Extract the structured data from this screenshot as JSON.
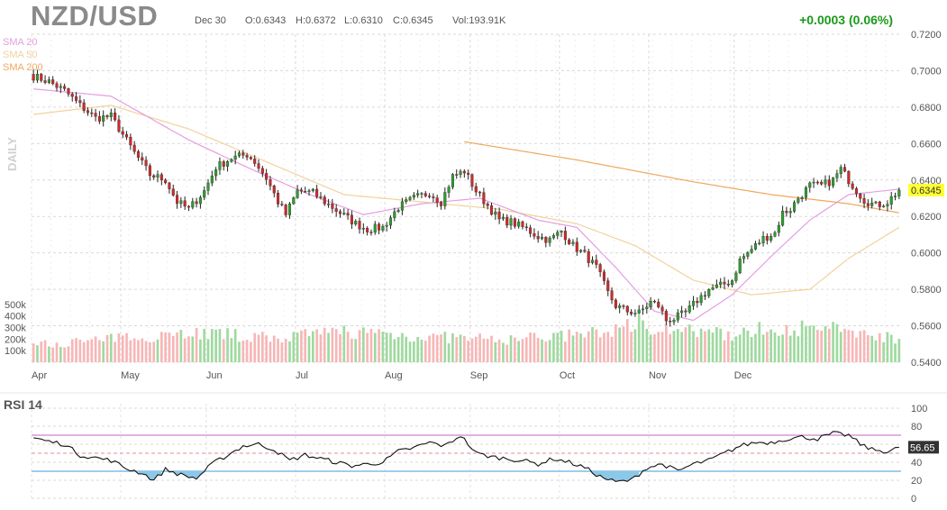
{
  "header": {
    "symbol": "NZD/USD",
    "date": "Dec 30",
    "open": "O:0.6343",
    "high": "H:0.6372",
    "low": "L:0.6310",
    "close": "C:0.6345",
    "volume": "Vol:193.91K",
    "change": "+0.0003 (0.06%)"
  },
  "indicators": {
    "sma20": "SMA 20",
    "sma50": "SMA 50",
    "sma200": "SMA 200",
    "timeframe": "DAILY",
    "rsi": "RSI 14",
    "rsi_value": "56.65",
    "last_price": "0.6345"
  },
  "colors": {
    "up": "#2ca02c",
    "down": "#d62728",
    "vol_up": "#9fd99f",
    "vol_down": "#f7b6b6",
    "sma20": "#e59ee0",
    "sma50": "#f2d29c",
    "sma200": "#f0a860",
    "rsi_line": "#111111",
    "rsi_upper": "#d080d0",
    "rsi_lower": "#6aaedc",
    "last_price_bg": "#ffff33",
    "change": "#1a9a1a"
  },
  "chart_data": [
    {
      "type": "candlestick",
      "title": "NZD/USD",
      "x_months": [
        "Apr",
        "May",
        "Jun",
        "Jul",
        "Aug",
        "Sep",
        "Oct",
        "Nov",
        "Dec"
      ],
      "y_ticks": [
        "0.7200",
        "0.7000",
        "0.6800",
        "0.6600",
        "0.6400",
        "0.6200",
        "0.6000",
        "0.5800",
        "0.5600",
        "0.5400"
      ],
      "ylim": [
        0.54,
        0.72
      ],
      "close_anchors": [
        [
          0,
          0.697
        ],
        [
          4,
          0.694
        ],
        [
          8,
          0.689
        ],
        [
          12,
          0.681
        ],
        [
          16,
          0.674
        ],
        [
          20,
          0.675
        ],
        [
          23,
          0.665
        ],
        [
          26,
          0.655
        ],
        [
          30,
          0.643
        ],
        [
          34,
          0.64
        ],
        [
          37,
          0.628
        ],
        [
          40,
          0.624
        ],
        [
          44,
          0.634
        ],
        [
          47,
          0.647
        ],
        [
          51,
          0.652
        ],
        [
          55,
          0.654
        ],
        [
          57,
          0.65
        ],
        [
          60,
          0.641
        ],
        [
          63,
          0.628
        ],
        [
          65,
          0.621
        ],
        [
          68,
          0.634
        ],
        [
          72,
          0.633
        ],
        [
          75,
          0.628
        ],
        [
          79,
          0.622
        ],
        [
          83,
          0.616
        ],
        [
          86,
          0.613
        ],
        [
          90,
          0.614
        ],
        [
          94,
          0.625
        ],
        [
          98,
          0.63
        ],
        [
          102,
          0.633
        ],
        [
          105,
          0.628
        ],
        [
          108,
          0.642
        ],
        [
          111,
          0.645
        ],
        [
          114,
          0.634
        ],
        [
          117,
          0.626
        ],
        [
          120,
          0.618
        ],
        [
          123,
          0.617
        ],
        [
          127,
          0.613
        ],
        [
          130,
          0.609
        ],
        [
          133,
          0.607
        ],
        [
          136,
          0.612
        ],
        [
          139,
          0.604
        ],
        [
          142,
          0.599
        ],
        [
          145,
          0.592
        ],
        [
          148,
          0.578
        ],
        [
          150,
          0.571
        ],
        [
          153,
          0.568
        ],
        [
          156,
          0.567
        ],
        [
          159,
          0.573
        ],
        [
          161,
          0.571
        ],
        [
          163,
          0.563
        ],
        [
          165,
          0.564
        ],
        [
          168,
          0.567
        ],
        [
          171,
          0.574
        ],
        [
          174,
          0.58
        ],
        [
          177,
          0.582
        ],
        [
          180,
          0.585
        ],
        [
          182,
          0.596
        ],
        [
          185,
          0.602
        ],
        [
          188,
          0.608
        ],
        [
          191,
          0.611
        ],
        [
          193,
          0.622
        ],
        [
          195,
          0.624
        ],
        [
          197,
          0.63
        ],
        [
          200,
          0.637
        ],
        [
          203,
          0.637
        ],
        [
          206,
          0.64
        ],
        [
          208,
          0.646
        ],
        [
          211,
          0.637
        ],
        [
          214,
          0.629
        ],
        [
          217,
          0.626
        ],
        [
          220,
          0.628
        ],
        [
          223,
          0.6345
        ]
      ],
      "volume_ticks": [
        "500k",
        "400k",
        "300k",
        "200k",
        "100k"
      ],
      "volume_ylim": [
        0,
        530000
      ],
      "volume_anchors": [
        [
          0,
          150000
        ],
        [
          20,
          200000
        ],
        [
          40,
          260000
        ],
        [
          50,
          240000
        ],
        [
          60,
          210000
        ],
        [
          70,
          230000
        ],
        [
          80,
          270000
        ],
        [
          90,
          250000
        ],
        [
          100,
          220000
        ],
        [
          110,
          210000
        ],
        [
          120,
          190000
        ],
        [
          130,
          220000
        ],
        [
          140,
          230000
        ],
        [
          150,
          280000
        ],
        [
          155,
          350000
        ],
        [
          160,
          310000
        ],
        [
          170,
          260000
        ],
        [
          180,
          240000
        ],
        [
          190,
          300000
        ],
        [
          200,
          290000
        ],
        [
          210,
          280000
        ],
        [
          223,
          200000
        ]
      ],
      "sma20_points": [
        [
          0,
          0.69
        ],
        [
          20,
          0.686
        ],
        [
          40,
          0.662
        ],
        [
          55,
          0.647
        ],
        [
          70,
          0.633
        ],
        [
          85,
          0.621
        ],
        [
          100,
          0.627
        ],
        [
          115,
          0.63
        ],
        [
          130,
          0.618
        ],
        [
          140,
          0.614
        ],
        [
          150,
          0.592
        ],
        [
          160,
          0.568
        ],
        [
          170,
          0.563
        ],
        [
          180,
          0.577
        ],
        [
          190,
          0.598
        ],
        [
          200,
          0.618
        ],
        [
          210,
          0.632
        ],
        [
          223,
          0.635
        ]
      ],
      "sma50_points": [
        [
          0,
          0.676
        ],
        [
          20,
          0.681
        ],
        [
          40,
          0.668
        ],
        [
          60,
          0.65
        ],
        [
          80,
          0.632
        ],
        [
          100,
          0.628
        ],
        [
          120,
          0.624
        ],
        [
          140,
          0.616
        ],
        [
          155,
          0.604
        ],
        [
          170,
          0.585
        ],
        [
          185,
          0.577
        ],
        [
          200,
          0.58
        ],
        [
          210,
          0.597
        ],
        [
          223,
          0.614
        ]
      ],
      "sma200_points": [
        [
          111,
          0.661
        ],
        [
          140,
          0.651
        ],
        [
          170,
          0.639
        ],
        [
          190,
          0.632
        ],
        [
          210,
          0.627
        ],
        [
          223,
          0.622
        ]
      ]
    },
    {
      "type": "line",
      "title": "RSI 14",
      "ylim": [
        0,
        100
      ],
      "y_ticks": [
        "100",
        "80",
        "60",
        "40",
        "20",
        "0"
      ],
      "levels": [
        70,
        30
      ],
      "rsi_anchors": [
        [
          0,
          67
        ],
        [
          4,
          63
        ],
        [
          8,
          60
        ],
        [
          12,
          48
        ],
        [
          16,
          45
        ],
        [
          20,
          42
        ],
        [
          24,
          33
        ],
        [
          28,
          28
        ],
        [
          31,
          20
        ],
        [
          34,
          32
        ],
        [
          38,
          26
        ],
        [
          42,
          22
        ],
        [
          46,
          38
        ],
        [
          50,
          48
        ],
        [
          54,
          58
        ],
        [
          58,
          60
        ],
        [
          62,
          54
        ],
        [
          66,
          42
        ],
        [
          70,
          48
        ],
        [
          74,
          44
        ],
        [
          78,
          40
        ],
        [
          82,
          36
        ],
        [
          86,
          38
        ],
        [
          90,
          40
        ],
        [
          94,
          52
        ],
        [
          98,
          56
        ],
        [
          102,
          62
        ],
        [
          106,
          58
        ],
        [
          110,
          70
        ],
        [
          114,
          50
        ],
        [
          118,
          46
        ],
        [
          122,
          44
        ],
        [
          126,
          42
        ],
        [
          130,
          38
        ],
        [
          134,
          44
        ],
        [
          138,
          40
        ],
        [
          142,
          34
        ],
        [
          146,
          24
        ],
        [
          150,
          18
        ],
        [
          154,
          20
        ],
        [
          158,
          34
        ],
        [
          162,
          38
        ],
        [
          166,
          30
        ],
        [
          170,
          38
        ],
        [
          174,
          42
        ],
        [
          178,
          50
        ],
        [
          182,
          58
        ],
        [
          186,
          62
        ],
        [
          190,
          62
        ],
        [
          194,
          66
        ],
        [
          198,
          68
        ],
        [
          202,
          66
        ],
        [
          206,
          72
        ],
        [
          210,
          70
        ],
        [
          213,
          60
        ],
        [
          216,
          54
        ],
        [
          220,
          52
        ],
        [
          223,
          56.65
        ]
      ]
    }
  ]
}
